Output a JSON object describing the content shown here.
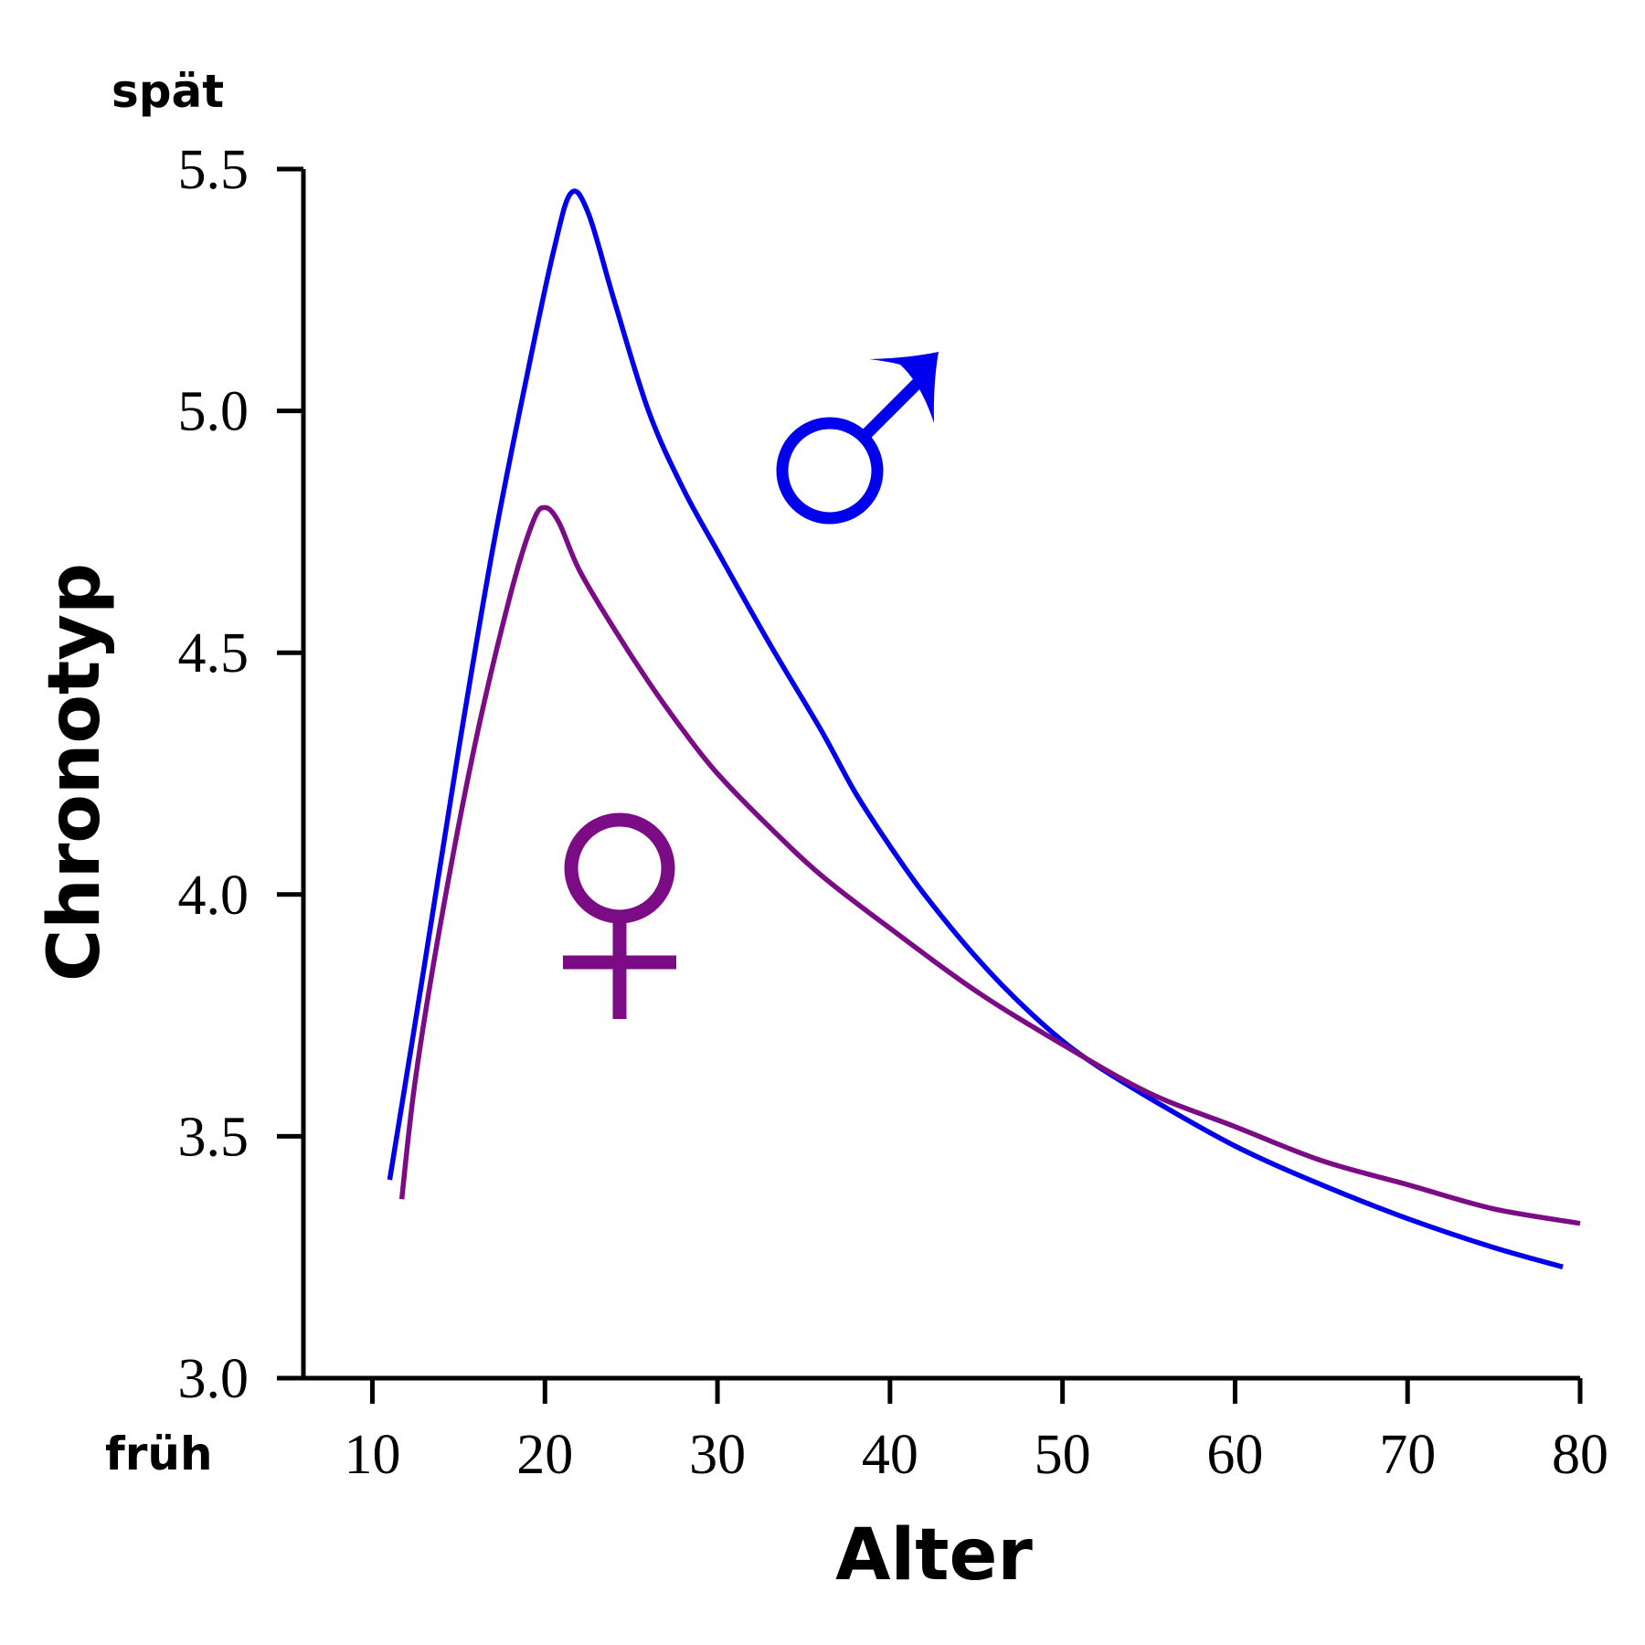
{
  "chart_data": {
    "type": "line",
    "title": "",
    "xlabel": "Alter",
    "ylabel": "Chronotyp",
    "xlim": [
      6,
      80
    ],
    "ylim": [
      3.0,
      5.5
    ],
    "x_ticks": [
      10,
      20,
      30,
      40,
      50,
      60,
      70,
      80
    ],
    "x_tick_labels": [
      "10",
      "20",
      "30",
      "40",
      "50",
      "60",
      "70",
      "80"
    ],
    "y_ticks": [
      3.0,
      3.5,
      4.0,
      4.5,
      5.0,
      5.5
    ],
    "y_tick_labels": [
      "3.0",
      "3.5",
      "4.0",
      "4.5",
      "5.0",
      "5.5"
    ],
    "y_low_label": "früh",
    "y_high_label": "spät",
    "grid": false,
    "legend": "none",
    "series": [
      {
        "name": "male",
        "symbol": "♂",
        "color": "#0000ee",
        "x": [
          11,
          13,
          15,
          17,
          19,
          20.5,
          21.5,
          22.5,
          24,
          26,
          28,
          30,
          33,
          36,
          38,
          40,
          42,
          45,
          48,
          51,
          55,
          60,
          65,
          70,
          75,
          79
        ],
        "y": [
          3.41,
          3.85,
          4.3,
          4.72,
          5.08,
          5.33,
          5.45,
          5.41,
          5.23,
          5.0,
          4.84,
          4.71,
          4.52,
          4.34,
          4.21,
          4.1,
          4.0,
          3.87,
          3.76,
          3.67,
          3.58,
          3.48,
          3.4,
          3.33,
          3.27,
          3.23
        ]
      },
      {
        "name": "female",
        "symbol": "♀",
        "color": "#7b0c85",
        "x": [
          11.7,
          12.5,
          14,
          16,
          18,
          19.3,
          20,
          20.8,
          22,
          24,
          26,
          28,
          30,
          33,
          36,
          40,
          45,
          50,
          55,
          60,
          65,
          70,
          75,
          80
        ],
        "y": [
          3.37,
          3.62,
          3.95,
          4.32,
          4.62,
          4.77,
          4.8,
          4.77,
          4.67,
          4.55,
          4.44,
          4.34,
          4.25,
          4.14,
          4.04,
          3.93,
          3.8,
          3.69,
          3.59,
          3.52,
          3.45,
          3.4,
          3.35,
          3.32
        ]
      }
    ]
  }
}
